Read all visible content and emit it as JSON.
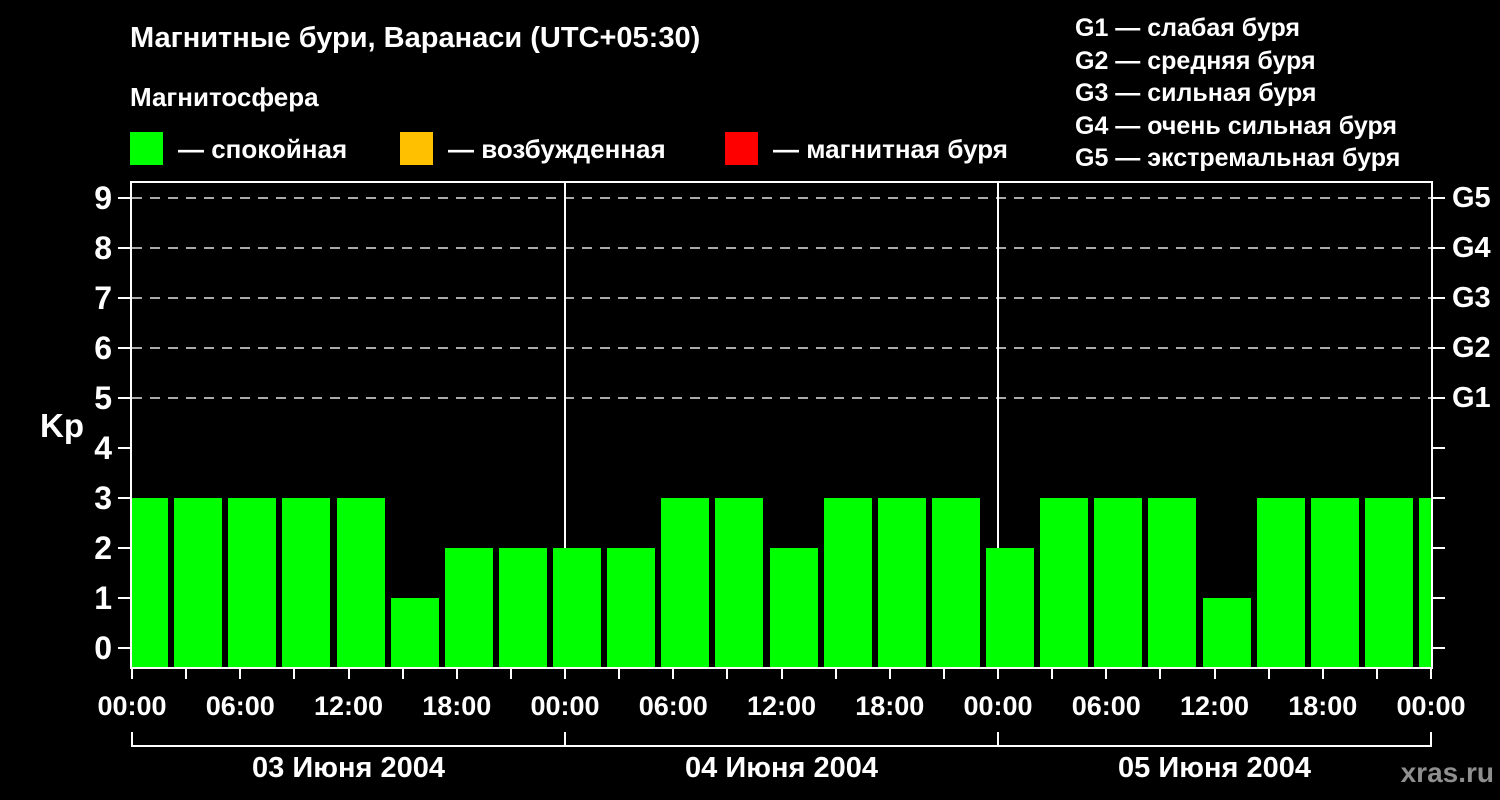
{
  "title": "Магнитные бури, Варанаси (UTC+05:30)",
  "subtitle": "Магнитосфера",
  "legend": {
    "items": [
      {
        "name": "quiet",
        "label": "— спокойная",
        "color": "#00ff00"
      },
      {
        "name": "unsettled",
        "label": "— возбужденная",
        "color": "#ffc000"
      },
      {
        "name": "storm",
        "label": "— магнитная буря",
        "color": "#ff0000"
      }
    ]
  },
  "storm_scale": {
    "items": [
      {
        "label": "G1 — слабая буря",
        "kp": 5
      },
      {
        "label": "G2 — средняя буря",
        "kp": 6
      },
      {
        "label": "G3 — сильная буря",
        "kp": 7
      },
      {
        "label": "G4 — очень сильная буря",
        "kp": 8
      },
      {
        "label": "G5 — экстремальная буря",
        "kp": 9
      }
    ]
  },
  "watermark": "xras.ru",
  "colors": {
    "background": "#000000",
    "bar_quiet": "#00ff00",
    "bar_unsettled": "#ffc000",
    "bar_storm": "#ff0000",
    "axis": "#ffffff",
    "grid": "#aaaaaa",
    "watermark": "#8f8f8f"
  },
  "chart_data": {
    "type": "bar",
    "title": "Магнитные бури, Варанаси (UTC+05:30)",
    "ylabel": "Kp",
    "ylim": [
      0,
      9.5
    ],
    "yticks": [
      0,
      1,
      2,
      3,
      4,
      5,
      6,
      7,
      8,
      9
    ],
    "grid_levels": [
      5,
      6,
      7,
      8,
      9
    ],
    "grid_style": "dashed horizontal gray lines at Kp 5-9 only",
    "bar_interval_hours": 3,
    "bar_color": "#00ff00",
    "days": [
      {
        "date": "03 Июня 2004",
        "values": [
          3,
          3,
          3,
          3,
          3,
          1,
          2,
          2
        ]
      },
      {
        "date": "04 Июня 2004",
        "values": [
          2,
          2,
          3,
          3,
          2,
          3,
          3,
          3
        ]
      },
      {
        "date": "05 Июня 2004",
        "values": [
          2,
          3,
          3,
          3,
          1,
          3,
          3,
          3
        ]
      }
    ],
    "partial_next_value": 3,
    "x_tick_labels": [
      "00:00",
      "06:00",
      "12:00",
      "18:00",
      "00:00",
      "06:00",
      "12:00",
      "18:00",
      "00:00",
      "06:00",
      "12:00",
      "18:00",
      "00:00"
    ],
    "right_axis": [
      {
        "kp": 5,
        "label": "G1"
      },
      {
        "kp": 6,
        "label": "G2"
      },
      {
        "kp": 7,
        "label": "G3"
      },
      {
        "kp": 8,
        "label": "G4"
      },
      {
        "kp": 9,
        "label": "G5"
      }
    ],
    "legend_position": "top"
  }
}
